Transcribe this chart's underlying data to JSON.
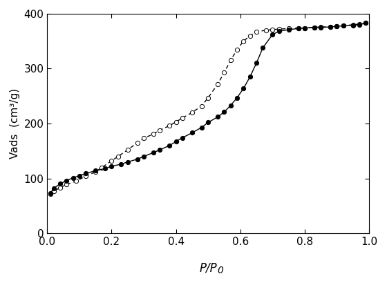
{
  "adsorption_x": [
    0.01,
    0.02,
    0.04,
    0.06,
    0.08,
    0.1,
    0.12,
    0.15,
    0.18,
    0.2,
    0.23,
    0.25,
    0.28,
    0.3,
    0.33,
    0.35,
    0.38,
    0.4,
    0.42,
    0.45,
    0.48,
    0.5,
    0.53,
    0.55,
    0.57,
    0.59,
    0.61,
    0.63,
    0.65,
    0.67,
    0.7,
    0.72,
    0.75,
    0.78,
    0.8,
    0.83,
    0.85,
    0.88,
    0.9,
    0.92,
    0.95,
    0.97,
    0.99
  ],
  "adsorption_y": [
    73,
    82,
    90,
    96,
    101,
    105,
    109,
    114,
    118,
    122,
    126,
    130,
    135,
    140,
    147,
    152,
    160,
    167,
    174,
    183,
    193,
    202,
    212,
    221,
    233,
    247,
    264,
    285,
    310,
    338,
    362,
    368,
    371,
    373,
    374,
    375,
    375,
    376,
    377,
    378,
    379,
    380,
    383
  ],
  "desorption_x": [
    0.99,
    0.97,
    0.95,
    0.92,
    0.9,
    0.88,
    0.85,
    0.83,
    0.8,
    0.78,
    0.75,
    0.72,
    0.7,
    0.68,
    0.65,
    0.63,
    0.61,
    0.59,
    0.57,
    0.55,
    0.53,
    0.5,
    0.48,
    0.45,
    0.42,
    0.4,
    0.38,
    0.35,
    0.33,
    0.3,
    0.28,
    0.25,
    0.22,
    0.2,
    0.17,
    0.15,
    0.12,
    0.09,
    0.06,
    0.04,
    0.02,
    0.01
  ],
  "desorption_y": [
    383,
    381,
    380,
    378,
    377,
    376,
    376,
    375,
    374,
    374,
    373,
    372,
    371,
    370,
    367,
    360,
    350,
    335,
    315,
    293,
    272,
    247,
    232,
    220,
    210,
    203,
    196,
    188,
    181,
    173,
    165,
    152,
    140,
    132,
    120,
    112,
    104,
    95,
    89,
    83,
    77,
    72
  ],
  "xlabel_text": "P/P",
  "xlabel_sub": "0",
  "ylabel": "Vads  (cm³/g)",
  "xlim": [
    0.0,
    1.0
  ],
  "ylim": [
    0,
    400
  ],
  "xticks": [
    0.0,
    0.2,
    0.4,
    0.6,
    0.8,
    1.0
  ],
  "yticks": [
    0,
    100,
    200,
    300,
    400
  ],
  "line_color": "#000000",
  "background_color": "#ffffff",
  "marker_size": 4.5,
  "line_width": 1.0,
  "tick_labelsize": 11,
  "ylabel_fontsize": 11
}
